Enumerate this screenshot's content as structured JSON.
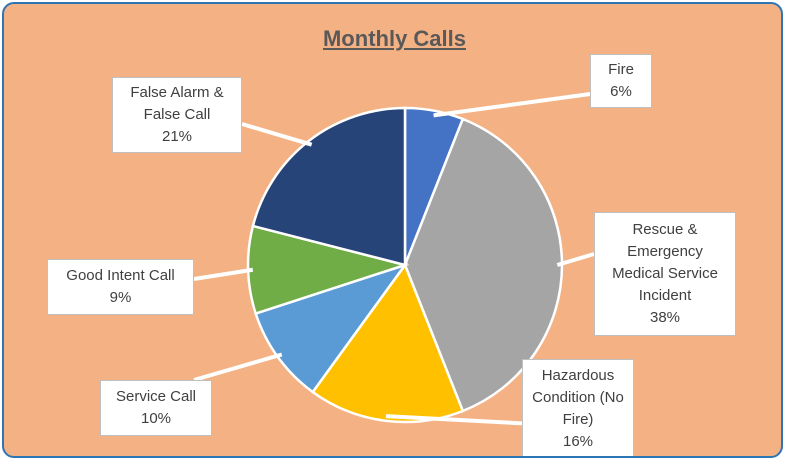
{
  "chart_data": {
    "type": "pie",
    "title": "Monthly Calls",
    "categories": [
      "Fire",
      "Rescue & Emergency Medical Service Incident",
      "Hazardous Condition (No Fire)",
      "Service Call",
      "Good Intent Call",
      "False Alarm & False Call"
    ],
    "values": [
      6,
      38,
      16,
      10,
      9,
      21
    ],
    "value_labels": [
      "6%",
      "38%",
      "16%",
      "10%",
      "9%",
      "21%"
    ],
    "colors": [
      "#4472c4",
      "#a5a5a5",
      "#ffc000",
      "#5b9bd5",
      "#70ad47",
      "#264478"
    ]
  }
}
